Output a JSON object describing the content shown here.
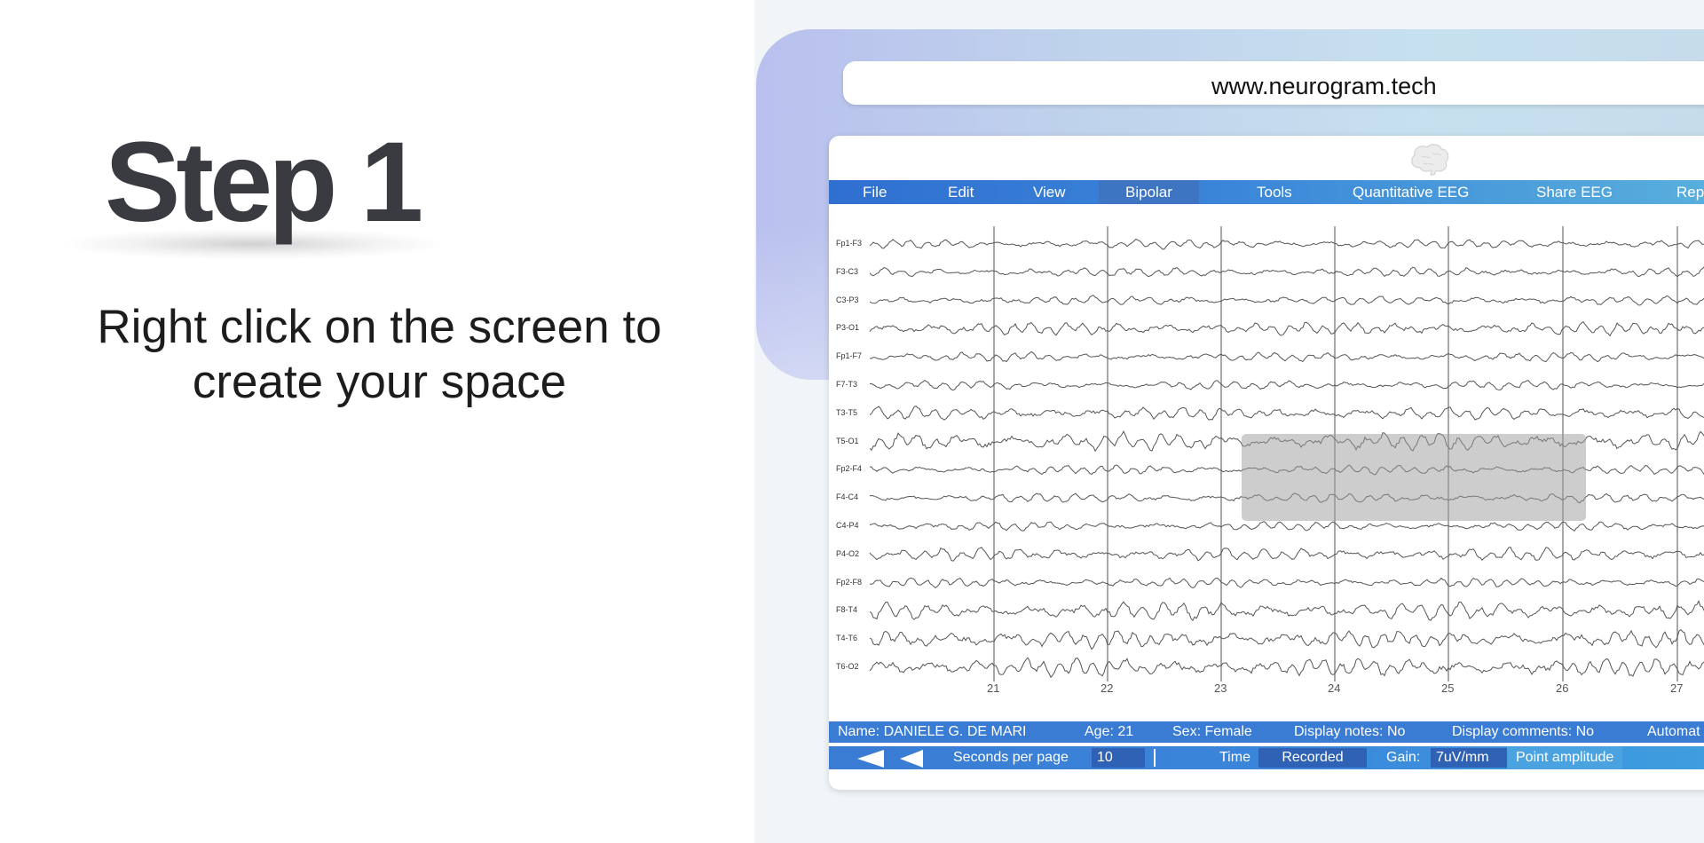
{
  "step": {
    "title": "Step 1",
    "description_line1": "Right click on the screen to",
    "description_line2": "create your space"
  },
  "browser": {
    "url": "www.neurogram.tech"
  },
  "app": {
    "logo_icon": "brain-icon",
    "menu": [
      {
        "label": "File"
      },
      {
        "label": "Edit"
      },
      {
        "label": "View"
      },
      {
        "label": "Bipolar",
        "active": true
      },
      {
        "label": "Tools"
      },
      {
        "label": "Quantitative EEG"
      },
      {
        "label": "Share EEG"
      },
      {
        "label": "Rep"
      }
    ],
    "channels": [
      "Fp1-F3",
      "F3-C3",
      "C3-P3",
      "P3-O1",
      "Fp1-F7",
      "F7-T3",
      "T3-T5",
      "T5-O1",
      "Fp2-F4",
      "F4-C4",
      "C4-P4",
      "P4-O2",
      "Fp2-F8",
      "F8-T4",
      "T4-T6",
      "T6-O2"
    ],
    "time_ticks": [
      "21",
      "22",
      "23",
      "24",
      "25",
      "26",
      "27"
    ],
    "info": {
      "name": "Name: DANIELE G. DE MARI",
      "age": "Age: 21",
      "sex": "Sex: Female",
      "display_notes": "Display notes: No",
      "display_comments": "Display comments: No",
      "automatic": "Automat"
    },
    "controls": {
      "seconds_per_page_label": "Seconds per page",
      "seconds_per_page_value": "10",
      "time_label": "Time",
      "time_value": "Recorded",
      "gain_label": "Gain:",
      "gain_value": "7uV/mm",
      "point_amplitude": "Point amplitude"
    },
    "colors": {
      "menu_blue": "#2f6fd0",
      "menu_light_blue": "#59b0dc",
      "bar_blue": "#3a7bd3",
      "trace": "#555555"
    }
  }
}
